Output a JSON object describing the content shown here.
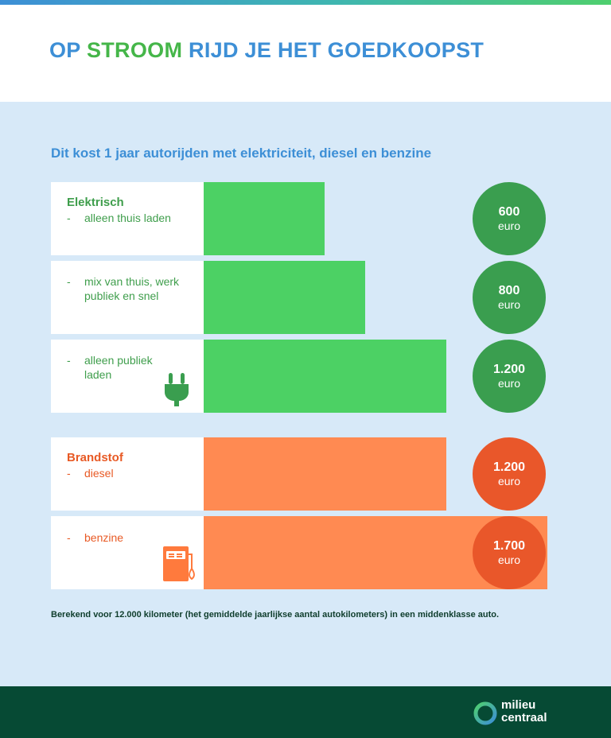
{
  "title": {
    "part1": "OP ",
    "highlight": "STROOM",
    "part2": " RIJD JE HET GOEDKOOPST"
  },
  "subtitle": "Dit kost 1 jaar autorijden met elektriciteit, diesel en benzine",
  "groups": {
    "electric": {
      "title": "Elektrisch",
      "color": "#4cd164",
      "circle_color": "#3a9e4f"
    },
    "fuel": {
      "title": "Brandstof",
      "color": "#ff8a52",
      "circle_color": "#e9572a"
    }
  },
  "chart_data": {
    "type": "bar",
    "orientation": "horizontal",
    "unit": "euro",
    "bars": [
      {
        "group": "electric",
        "label": "alleen thuis laden",
        "value": 600,
        "value_label": "600"
      },
      {
        "group": "electric",
        "label": "mix van thuis, werk publiek en snel",
        "value": 800,
        "value_label": "800"
      },
      {
        "group": "electric",
        "label": "alleen publiek laden",
        "value": 1200,
        "value_label": "1.200"
      },
      {
        "group": "fuel",
        "label": "diesel",
        "value": 1200,
        "value_label": "1.200"
      },
      {
        "group": "fuel",
        "label": "benzine",
        "value": 1700,
        "value_label": "1.700"
      }
    ]
  },
  "labels": {
    "dash": "-",
    "thuis": [
      "alleen thuis laden"
    ],
    "mix": [
      "mix van thuis, werk",
      "publiek en snel"
    ],
    "publiek": [
      "alleen publiek",
      "laden"
    ],
    "diesel": [
      "diesel"
    ],
    "benzine": [
      "benzine"
    ]
  },
  "icons": {
    "plug": "plug-icon",
    "fuel_pump": "fuel-pump-icon"
  },
  "footnote": "Berekend voor 12.000 kilometer (het gemiddelde jaarlijkse aantal autokilometers) in een middenklasse auto.",
  "logo": {
    "line1": "milieu",
    "line2": "centraal"
  }
}
